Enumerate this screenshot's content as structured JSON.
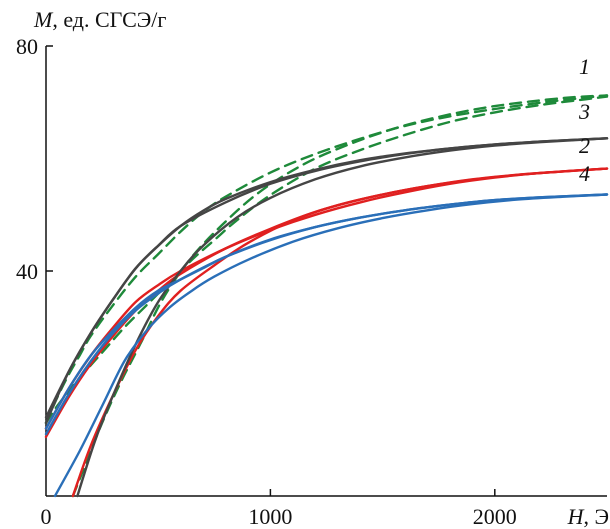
{
  "chart_data": {
    "type": "line",
    "title": "",
    "xlabel": {
      "symbol": "H",
      "unit": ", Э"
    },
    "ylabel": {
      "symbol": "M",
      "unit": ", ед. СГСЭ/г"
    },
    "xlim": [
      0,
      2500
    ],
    "ylim": [
      0,
      80
    ],
    "x_ticks": [
      {
        "value": 0,
        "label": "0"
      },
      {
        "value": 1000,
        "label": "1000"
      },
      {
        "value": 2000,
        "label": "2000"
      }
    ],
    "y_ticks": [
      {
        "value": 40,
        "label": "40"
      },
      {
        "value": 80,
        "label": "80"
      }
    ],
    "grid": false,
    "colors": {
      "1": "#1e8a3a",
      "2": "#e02020",
      "3": "#454545",
      "4": "#2a6fb8"
    },
    "series": [
      {
        "name": "1",
        "color": "#1e8a3a",
        "dashed": true,
        "upper": [
          [
            0,
            13
          ],
          [
            50,
            17.5
          ],
          [
            100,
            21.5
          ],
          [
            150,
            25
          ],
          [
            200,
            28.5
          ],
          [
            300,
            34
          ],
          [
            400,
            39
          ],
          [
            500,
            43
          ],
          [
            600,
            47
          ],
          [
            700,
            50.5
          ],
          [
            800,
            53.2
          ],
          [
            1000,
            57.5
          ],
          [
            1200,
            60.8
          ],
          [
            1400,
            63.5
          ],
          [
            1600,
            65.8
          ],
          [
            1800,
            67.5
          ],
          [
            2000,
            68.8
          ],
          [
            2200,
            69.9
          ],
          [
            2400,
            70.8
          ],
          [
            2500,
            71.2
          ]
        ],
        "lower": [
          [
            0,
            13
          ],
          [
            50,
            16
          ],
          [
            150,
            21
          ],
          [
            250,
            25.5
          ],
          [
            350,
            30
          ],
          [
            450,
            34
          ],
          [
            550,
            38
          ],
          [
            650,
            42
          ],
          [
            750,
            45.5
          ],
          [
            850,
            49
          ],
          [
            1000,
            53.5
          ],
          [
            1200,
            58.2
          ],
          [
            1400,
            61.5
          ],
          [
            1600,
            64.2
          ],
          [
            1800,
            66.5
          ],
          [
            2000,
            68.2
          ],
          [
            2200,
            69.5
          ],
          [
            2400,
            70.5
          ],
          [
            2500,
            71
          ]
        ],
        "initial": [
          [
            120,
            0
          ],
          [
            180,
            6
          ],
          [
            250,
            13
          ],
          [
            330,
            20
          ],
          [
            420,
            27
          ],
          [
            520,
            35
          ],
          [
            640,
            42
          ],
          [
            780,
            48
          ],
          [
            950,
            54
          ],
          [
            1150,
            59
          ],
          [
            1350,
            62.5
          ],
          [
            1550,
            65.3
          ],
          [
            1750,
            67.4
          ],
          [
            1950,
            69
          ],
          [
            2150,
            70.1
          ],
          [
            2350,
            70.9
          ],
          [
            2500,
            71.2
          ]
        ]
      },
      {
        "name": "2",
        "color": "#e02020",
        "dashed": false,
        "upper": [
          [
            0,
            12
          ],
          [
            100,
            19
          ],
          [
            200,
            25
          ],
          [
            300,
            30
          ],
          [
            400,
            34.5
          ],
          [
            500,
            37.5
          ],
          [
            600,
            40
          ],
          [
            800,
            44
          ],
          [
            1000,
            47.3
          ],
          [
            1200,
            50
          ],
          [
            1400,
            52.2
          ],
          [
            1600,
            54
          ],
          [
            1800,
            55.5
          ],
          [
            2000,
            56.6
          ],
          [
            2200,
            57.4
          ],
          [
            2500,
            58.2
          ]
        ],
        "lower": [
          [
            0,
            10.5
          ],
          [
            100,
            17.5
          ],
          [
            200,
            23.5
          ],
          [
            300,
            28.5
          ],
          [
            400,
            33
          ],
          [
            500,
            36.5
          ],
          [
            600,
            39.5
          ],
          [
            800,
            44
          ],
          [
            1000,
            47.5
          ],
          [
            1200,
            50.5
          ],
          [
            1400,
            52.7
          ],
          [
            1600,
            54.4
          ],
          [
            1800,
            55.7
          ],
          [
            2000,
            56.7
          ],
          [
            2200,
            57.4
          ],
          [
            2500,
            58.2
          ]
        ],
        "initial": [
          [
            120,
            0
          ],
          [
            200,
            9
          ],
          [
            300,
            18
          ],
          [
            400,
            26
          ],
          [
            500,
            32
          ],
          [
            600,
            36.5
          ],
          [
            750,
            41
          ],
          [
            900,
            45
          ],
          [
            1100,
            49
          ],
          [
            1300,
            51.7
          ],
          [
            1500,
            53.6
          ],
          [
            1700,
            55.1
          ],
          [
            1900,
            56.3
          ],
          [
            2100,
            57.1
          ],
          [
            2300,
            57.7
          ],
          [
            2500,
            58.2
          ]
        ]
      },
      {
        "name": "3",
        "color": "#454545",
        "dashed": false,
        "upper": [
          [
            0,
            13
          ],
          [
            100,
            22
          ],
          [
            200,
            29
          ],
          [
            300,
            35
          ],
          [
            400,
            40.5
          ],
          [
            500,
            44.5
          ],
          [
            600,
            48
          ],
          [
            700,
            50.7
          ],
          [
            800,
            52.8
          ],
          [
            1000,
            55.8
          ],
          [
            1200,
            58
          ],
          [
            1400,
            59.7
          ],
          [
            1600,
            60.9
          ],
          [
            1800,
            61.8
          ],
          [
            2000,
            62.5
          ],
          [
            2200,
            63
          ],
          [
            2500,
            63.6
          ]
        ],
        "lower": [
          [
            0,
            14
          ],
          [
            100,
            22
          ],
          [
            200,
            29
          ],
          [
            300,
            35
          ],
          [
            400,
            40.5
          ],
          [
            500,
            44.5
          ],
          [
            600,
            48
          ],
          [
            800,
            52.2
          ],
          [
            1000,
            55.5
          ],
          [
            1200,
            57.8
          ],
          [
            1400,
            59.5
          ],
          [
            1600,
            60.8
          ],
          [
            1800,
            61.8
          ],
          [
            2000,
            62.5
          ],
          [
            2200,
            63
          ],
          [
            2500,
            63.6
          ]
        ],
        "initial": [
          [
            140,
            0
          ],
          [
            220,
            10
          ],
          [
            300,
            18
          ],
          [
            400,
            27
          ],
          [
            500,
            34.5
          ],
          [
            600,
            40
          ],
          [
            700,
            44.5
          ],
          [
            850,
            49.5
          ],
          [
            1000,
            53
          ],
          [
            1200,
            56.3
          ],
          [
            1400,
            58.6
          ],
          [
            1600,
            60.2
          ],
          [
            1800,
            61.4
          ],
          [
            2000,
            62.3
          ],
          [
            2200,
            62.9
          ],
          [
            2500,
            63.6
          ]
        ]
      },
      {
        "name": "4",
        "color": "#2a6fb8",
        "dashed": false,
        "upper": [
          [
            0,
            12
          ],
          [
            100,
            19
          ],
          [
            200,
            25
          ],
          [
            300,
            29.5
          ],
          [
            400,
            33.5
          ],
          [
            500,
            36.5
          ],
          [
            600,
            38.5
          ],
          [
            700,
            40.5
          ],
          [
            800,
            42.5
          ],
          [
            1000,
            45.5
          ],
          [
            1200,
            47.8
          ],
          [
            1400,
            49.5
          ],
          [
            1600,
            50.8
          ],
          [
            1800,
            51.8
          ],
          [
            2000,
            52.6
          ],
          [
            2200,
            53.1
          ],
          [
            2500,
            53.6
          ]
        ],
        "lower": [
          [
            0,
            11
          ],
          [
            100,
            18
          ],
          [
            200,
            24
          ],
          [
            300,
            29
          ],
          [
            400,
            33
          ],
          [
            500,
            36
          ],
          [
            600,
            38.5
          ],
          [
            800,
            42.5
          ],
          [
            1000,
            45.6
          ],
          [
            1200,
            47.8
          ],
          [
            1400,
            49.5
          ],
          [
            1600,
            50.8
          ],
          [
            1800,
            51.8
          ],
          [
            2000,
            52.6
          ],
          [
            2200,
            53.1
          ],
          [
            2500,
            53.6
          ]
        ],
        "initial": [
          [
            40,
            0
          ],
          [
            150,
            8
          ],
          [
            250,
            16
          ],
          [
            350,
            24
          ],
          [
            450,
            29.5
          ],
          [
            550,
            33.5
          ],
          [
            650,
            36.5
          ],
          [
            750,
            39
          ],
          [
            900,
            42
          ],
          [
            1100,
            45.2
          ],
          [
            1300,
            47.6
          ],
          [
            1500,
            49.4
          ],
          [
            1700,
            50.8
          ],
          [
            1900,
            51.9
          ],
          [
            2100,
            52.7
          ],
          [
            2300,
            53.2
          ],
          [
            2500,
            53.6
          ]
        ]
      }
    ],
    "annotations": [
      {
        "text": "1",
        "series": "1",
        "at": [
          2400,
          75
        ]
      },
      {
        "text": "3",
        "series": "3",
        "at": [
          2400,
          67
        ]
      },
      {
        "text": "2",
        "series": "2",
        "at": [
          2400,
          61
        ]
      },
      {
        "text": "4",
        "series": "4",
        "at": [
          2400,
          56
        ]
      }
    ]
  }
}
